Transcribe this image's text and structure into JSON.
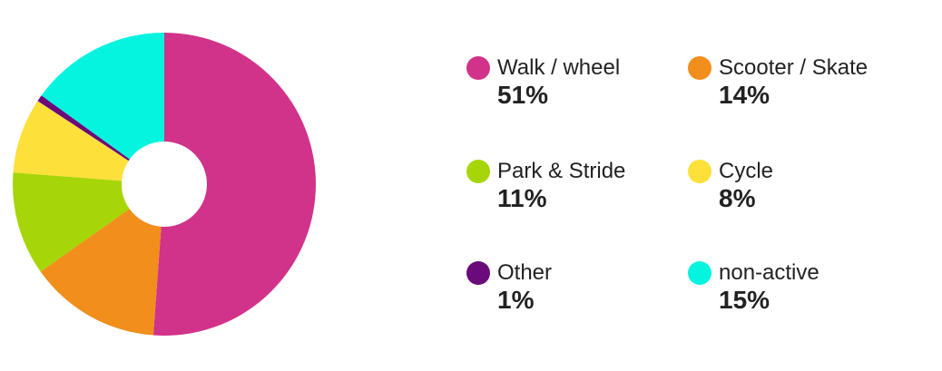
{
  "chart_data": {
    "type": "pie",
    "variant": "donut",
    "title": "",
    "legend_position": "right",
    "series": [
      {
        "name": "Walk / wheel",
        "label": "51%",
        "value": 51,
        "color": "#d1338a"
      },
      {
        "name": "Scooter / Skate",
        "label": "14%",
        "value": 14,
        "color": "#f18e1c"
      },
      {
        "name": "Park & Stride",
        "label": "11%",
        "value": 11,
        "color": "#a6d608"
      },
      {
        "name": "Cycle",
        "label": "8%",
        "value": 8,
        "color": "#fde03a"
      },
      {
        "name": "Other",
        "label": "1%",
        "value": 0.7,
        "color": "#6b0a7a"
      },
      {
        "name": "non-active",
        "label": "15%",
        "value": 15,
        "color": "#05f4df"
      }
    ]
  }
}
